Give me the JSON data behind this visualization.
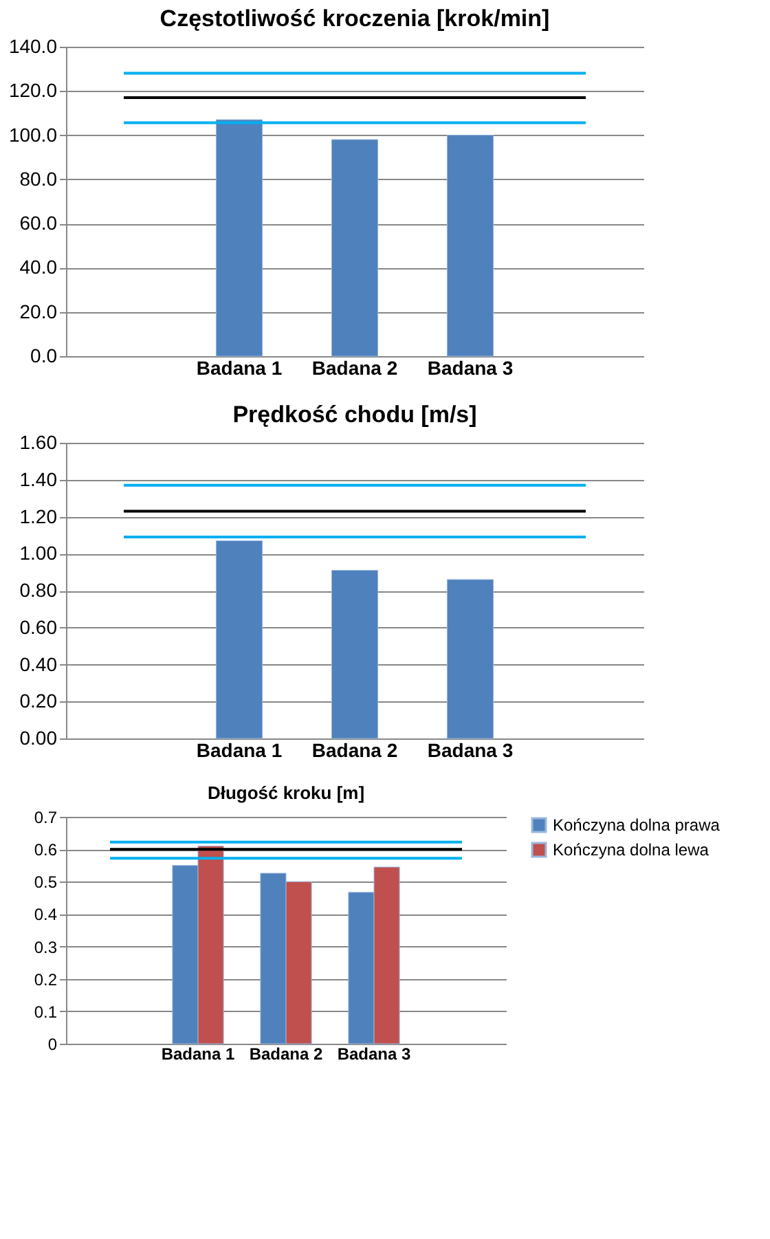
{
  "chart_data": [
    {
      "type": "bar",
      "title": "Częstotliwość kroczenia [krok/min]",
      "categories": [
        null,
        "Badana 1",
        "Badana 2",
        "Badana 3",
        null
      ],
      "series": [
        {
          "color": "#4f81bd",
          "values": [
            null,
            107,
            98,
            100,
            null
          ]
        }
      ],
      "ylim": [
        0,
        140
      ],
      "yticks": [
        {
          "value": 0,
          "label": "0.0"
        },
        {
          "value": 20,
          "label": "20.0"
        },
        {
          "value": 40,
          "label": "40.0"
        },
        {
          "value": 60,
          "label": "60.0"
        },
        {
          "value": 80,
          "label": "80.0"
        },
        {
          "value": 100,
          "label": "100.0"
        },
        {
          "value": 120,
          "label": "120.0"
        },
        {
          "value": 140,
          "label": "140.0"
        }
      ],
      "ref_lines": [
        {
          "axis": "y",
          "value": 128,
          "color": "#00b0f0"
        },
        {
          "axis": "y",
          "value": 117,
          "color": "#000000"
        },
        {
          "axis": "y",
          "value": 105.6,
          "color": "#00b0f0"
        }
      ],
      "grid": "y"
    },
    {
      "type": "bar",
      "title": "Prędkość chodu [m/s]",
      "categories": [
        null,
        "Badana 1",
        "Badana 2",
        "Badana 3",
        null
      ],
      "series": [
        {
          "color": "#4f81bd",
          "values": [
            null,
            1.07,
            0.91,
            0.86,
            null
          ]
        }
      ],
      "ylim": [
        0,
        1.6
      ],
      "yticks": [
        {
          "value": 0,
          "label": "0.00"
        },
        {
          "value": 0.2,
          "label": "0.20"
        },
        {
          "value": 0.4,
          "label": "0.40"
        },
        {
          "value": 0.6,
          "label": "0.60"
        },
        {
          "value": 0.8,
          "label": "0.80"
        },
        {
          "value": 1,
          "label": "1.00"
        },
        {
          "value": 1.2,
          "label": "1.20"
        },
        {
          "value": 1.4,
          "label": "1.40"
        },
        {
          "value": 1.6,
          "label": "1.60"
        }
      ],
      "ref_lines": [
        {
          "axis": "y",
          "value": 1.37,
          "color": "#00b0f0"
        },
        {
          "axis": "y",
          "value": 1.23,
          "color": "#000000"
        },
        {
          "axis": "y",
          "value": 1.09,
          "color": "#00b0f0"
        }
      ],
      "grid": "y"
    },
    {
      "type": "bar",
      "title": "Długość kroku [m]",
      "categories": [
        null,
        "Badana 1",
        "Badana 2",
        "Badana 3",
        null
      ],
      "series": [
        {
          "name": "Kończyna dolna prawa",
          "color": "#4f81bd",
          "values": [
            null,
            0.55,
            0.526,
            0.467,
            null
          ]
        },
        {
          "name": "Kończyna dolna lewa",
          "color": "#c0504d",
          "values": [
            null,
            0.61,
            0.5,
            0.545,
            null
          ]
        }
      ],
      "ylim": [
        0,
        0.7
      ],
      "yticks": [
        0,
        0.1,
        0.2,
        0.3,
        0.4,
        0.5,
        0.6,
        0.7
      ],
      "ref_lines": [
        {
          "axis": "y",
          "value": 0.622,
          "color": "#00b0f0"
        },
        {
          "axis": "y",
          "value": 0.6,
          "color": "#000000"
        },
        {
          "axis": "y",
          "value": 0.572,
          "color": "#00b0f0"
        }
      ],
      "grid": "y",
      "legend": "right"
    }
  ]
}
